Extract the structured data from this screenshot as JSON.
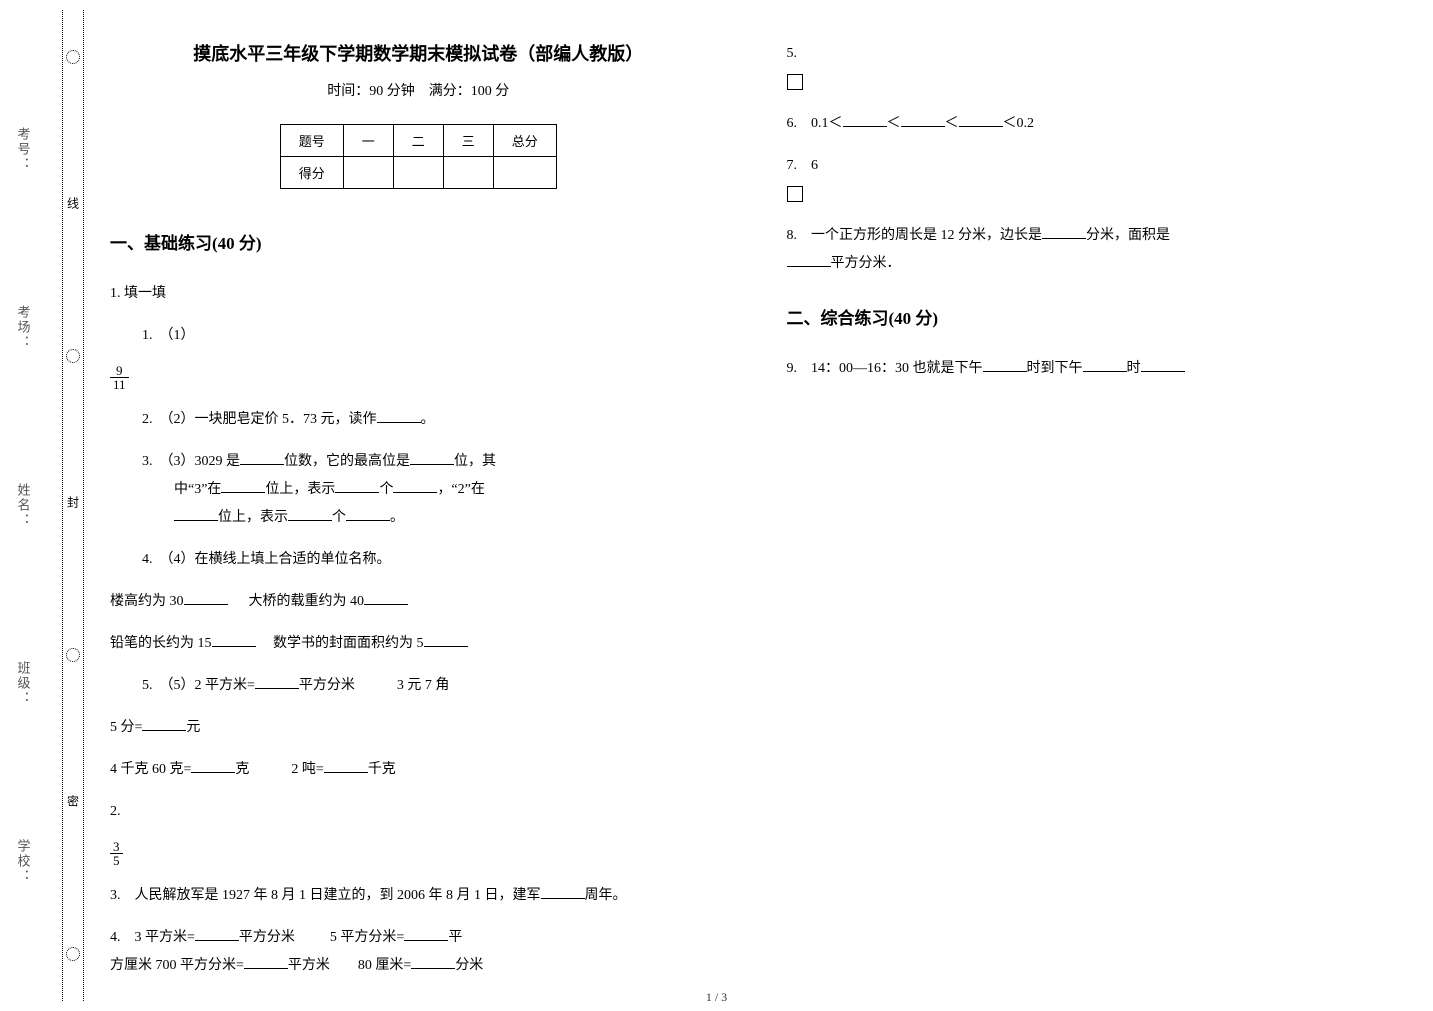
{
  "colors": {
    "text": "#000000",
    "bg": "#ffffff",
    "side_label": "#555555"
  },
  "fonts": {
    "body_pt": 14,
    "title_pt": 18,
    "h2_pt": 17,
    "small_pt": 12
  },
  "side": {
    "labels": [
      "考号：",
      "考场：",
      "姓名：",
      "班级：",
      "学校："
    ],
    "cut_words": [
      "线",
      "封",
      "密"
    ]
  },
  "title": "摸底水平三年级下学期数学期末模拟试卷（部编人教版）",
  "subtitle": "时间：90 分钟　满分：100 分",
  "score_table": {
    "header": [
      "题号",
      "一",
      "二",
      "三",
      "总分"
    ],
    "row_label": "得分"
  },
  "section1": {
    "heading": "一、基础练习(40 分)",
    "q1_label": "1. 填一填",
    "q1_1_label": "1.　（1）",
    "frac_9_11": {
      "num": "9",
      "den": "11"
    },
    "q1_2": "2.　（2）一块肥皂定价 5．73 元，读作",
    "q1_2_tail": "。",
    "q1_3a": "3.　（3）3029 是",
    "q1_3b": "位数，它的最高位是",
    "q1_3c": "位，其",
    "q1_3d": "中“3”在",
    "q1_3e": "位上，表示",
    "q1_3f": "个",
    "q1_3g": "，“2”在",
    "q1_3h": "位上，表示",
    "q1_3i": "个",
    "q1_3j": "。",
    "q1_4": "4.　（4）在横线上填上合适的单位名称。",
    "q1_4_l1a": "楼高约为 30",
    "q1_4_l1b": "大桥的载重约为 40",
    "q1_4_l2a": "铅笔的长约为 15",
    "q1_4_l2b": "数学书的封面面积约为 5",
    "q1_5a": "5.　（5）2 平方米=",
    "q1_5b": "平方分米",
    "q1_5c": "3 元 7 角",
    "q1_5d": "5 分=",
    "q1_5e": "元",
    "q1_5f": "4 千克 60 克=",
    "q1_5g": "克",
    "q1_5h": "2 吨=",
    "q1_5i": "千克",
    "q2_label": "2.",
    "frac_3_5": {
      "num": "3",
      "den": "5"
    },
    "q3a": "3.　人民解放军是 1927 年 8 月 1 日建立的，到 2006 年 8 月 1 日，建军",
    "q3b": "周年。",
    "q4a": "4.　3 平方米=",
    "q4b": "平方分米",
    "q4c": "5 平方分米=",
    "q4d": "平",
    "q4e": "方厘米 700 平方分米=",
    "q4f": "平方米",
    "q4g": "80 厘米=",
    "q4h": "分米",
    "q5_label": "5.",
    "q6a": "6.　0.1＜",
    "q6b": "＜",
    "q6c": "＜",
    "q6d": "＜0.2",
    "q7_label": "7.　6",
    "q8a": "8.　一个正方形的周长是 12 分米，边长是",
    "q8b": "分米，面积是",
    "q8c": "平方分米．"
  },
  "section2": {
    "heading": "二、综合练习(40 分)",
    "q9a": "9.　14：00—16：30 也就是下午",
    "q9b": "时到下午",
    "q9c": "时"
  },
  "footer": "1 / 3"
}
